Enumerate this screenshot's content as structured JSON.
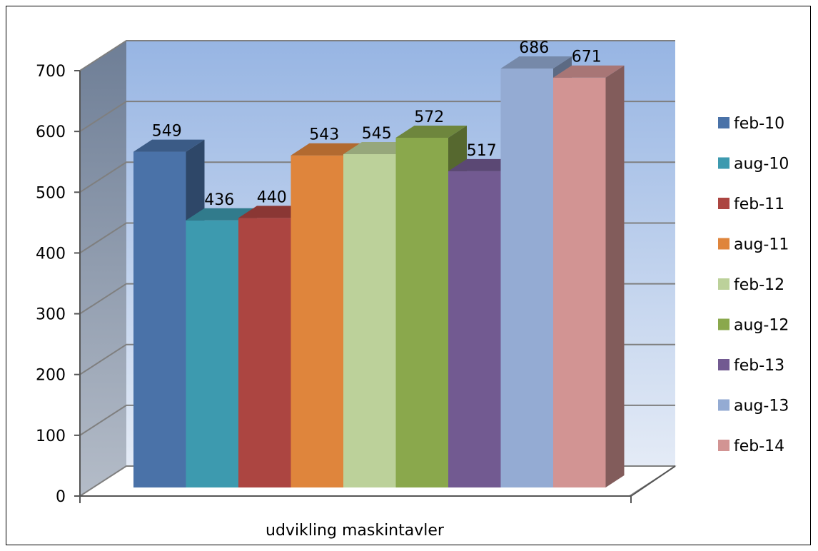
{
  "chart_data": {
    "type": "bar",
    "title": "",
    "xlabel": "",
    "ylabel": "",
    "categories": [
      "udvikling maskintavler"
    ],
    "ylim": [
      0,
      700
    ],
    "yticks": [
      0,
      100,
      200,
      300,
      400,
      500,
      600,
      700
    ],
    "grid": true,
    "legend_position": "right",
    "three_d": true,
    "series": [
      {
        "name": "feb-10",
        "values": [
          549
        ],
        "color": "#4a72a8"
      },
      {
        "name": "aug-10",
        "values": [
          436
        ],
        "color": "#3d9aaf"
      },
      {
        "name": "feb-11",
        "values": [
          440
        ],
        "color": "#ac4541"
      },
      {
        "name": "aug-11",
        "values": [
          543
        ],
        "color": "#df853c"
      },
      {
        "name": "feb-12",
        "values": [
          545
        ],
        "color": "#bcd19a"
      },
      {
        "name": "aug-12",
        "values": [
          572
        ],
        "color": "#8aa84c"
      },
      {
        "name": "feb-13",
        "values": [
          517
        ],
        "color": "#725a91"
      },
      {
        "name": "aug-13",
        "values": [
          686
        ],
        "color": "#94abd3"
      },
      {
        "name": "feb-14",
        "values": [
          671
        ],
        "color": "#d29493"
      }
    ]
  }
}
